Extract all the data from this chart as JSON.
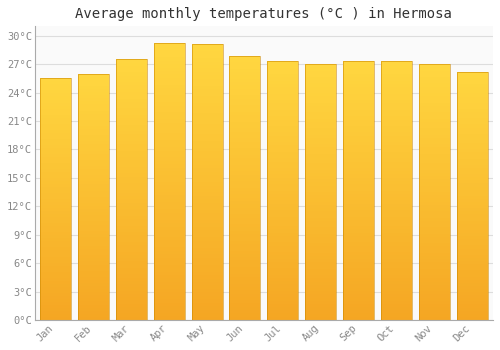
{
  "title": "Average monthly temperatures (°C ) in Hermosa",
  "months": [
    "Jan",
    "Feb",
    "Mar",
    "Apr",
    "May",
    "Jun",
    "Jul",
    "Aug",
    "Sep",
    "Oct",
    "Nov",
    "Dec"
  ],
  "temperatures": [
    25.5,
    26.0,
    27.5,
    29.2,
    29.1,
    27.9,
    27.3,
    27.0,
    27.3,
    27.3,
    27.0,
    26.2
  ],
  "bar_color_bottom": "#F5A623",
  "bar_color_top": "#FFD740",
  "background_color": "#FFFFFF",
  "plot_bg_color": "#FAFAFA",
  "grid_color": "#DDDDDD",
  "ytick_labels": [
    "0°C",
    "3°C",
    "6°C",
    "9°C",
    "12°C",
    "15°C",
    "18°C",
    "21°C",
    "24°C",
    "27°C",
    "30°C"
  ],
  "ytick_values": [
    0,
    3,
    6,
    9,
    12,
    15,
    18,
    21,
    24,
    27,
    30
  ],
  "ylim": [
    0,
    31
  ],
  "title_fontsize": 10,
  "tick_fontsize": 7.5
}
